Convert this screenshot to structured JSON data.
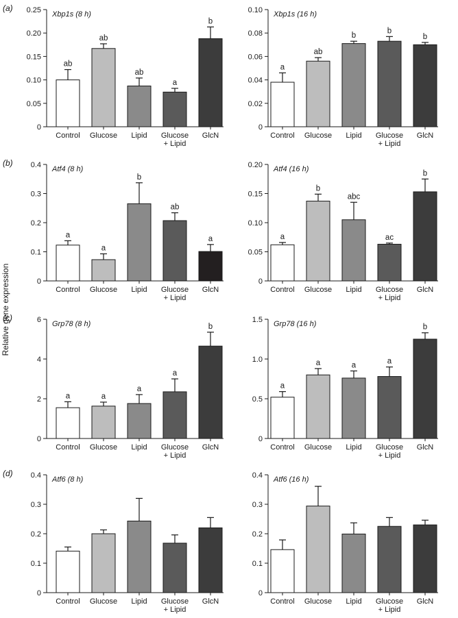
{
  "ylabel": "Relative gene expression",
  "colors": {
    "Control": "#ffffff",
    "Glucose": "#bdbdbd",
    "Lipid": "#8a8a8a",
    "Glucose + Lipid": "#5a5a5a",
    "GlcN": "#3c3c3c",
    "GlcN_atf4_8h": "#231f20",
    "axis": "#1a1a1a"
  },
  "panels": [
    {
      "label": "(a)",
      "left_gene": "Xbp1s",
      "right_gene": "Xbp1s"
    },
    {
      "label": "(b)",
      "left_gene": "Atf4",
      "right_gene": "Atf4"
    },
    {
      "label": "(c)",
      "left_gene": "Grp78",
      "right_gene": "Grp78"
    },
    {
      "label": "(d)",
      "left_gene": "Atf6",
      "right_gene": "Atf6"
    }
  ],
  "chart_data": [
    {
      "type": "bar",
      "panel": "(a)",
      "gene": "Xbp1s",
      "time": "(8 h)",
      "categories": [
        "Control",
        "Glucose",
        "Lipid",
        "Glucose + Lipid",
        "GlcN"
      ],
      "values": [
        0.1,
        0.167,
        0.087,
        0.074,
        0.188
      ],
      "errors": [
        0.022,
        0.01,
        0.017,
        0.008,
        0.025
      ],
      "significance": [
        "ab",
        "ab",
        "ab",
        "a",
        "b"
      ],
      "ylim": [
        0,
        0.25
      ],
      "yticks": [
        "0",
        "0.05",
        "0.10",
        "0.15",
        "0.20",
        "0.25"
      ]
    },
    {
      "type": "bar",
      "panel": "(a)",
      "gene": "Xbp1s",
      "time": "(16 h)",
      "categories": [
        "Control",
        "Glucose",
        "Lipid",
        "Glucose + Lipid",
        "GlcN"
      ],
      "values": [
        0.038,
        0.056,
        0.071,
        0.073,
        0.07
      ],
      "errors": [
        0.008,
        0.003,
        0.002,
        0.004,
        0.002
      ],
      "significance": [
        "a",
        "ab",
        "b",
        "b",
        "b"
      ],
      "ylim": [
        0,
        0.1
      ],
      "yticks": [
        "0",
        "0.02",
        "0.04",
        "0.06",
        "0.08",
        "0.10"
      ]
    },
    {
      "type": "bar",
      "panel": "(b)",
      "gene": "Atf4",
      "time": "(8 h)",
      "categories": [
        "Control",
        "Glucose",
        "Lipid",
        "Glucose + Lipid",
        "GlcN"
      ],
      "values": [
        0.123,
        0.073,
        0.265,
        0.207,
        0.101
      ],
      "errors": [
        0.015,
        0.02,
        0.072,
        0.027,
        0.024
      ],
      "significance": [
        "a",
        "a",
        "b",
        "ab",
        "a"
      ],
      "ylim": [
        0,
        0.4
      ],
      "yticks": [
        "0",
        "0.1",
        "0.2",
        "0.3",
        "0.4"
      ]
    },
    {
      "type": "bar",
      "panel": "(b)",
      "gene": "Atf4",
      "time": "(16 h)",
      "categories": [
        "Control",
        "Glucose",
        "Lipid",
        "Glucose + Lipid",
        "GlcN"
      ],
      "values": [
        0.062,
        0.137,
        0.105,
        0.063,
        0.153
      ],
      "errors": [
        0.004,
        0.012,
        0.03,
        0.002,
        0.022
      ],
      "significance": [
        "a",
        "b",
        "abc",
        "ac",
        "b"
      ],
      "ylim": [
        0,
        0.2
      ],
      "yticks": [
        "0",
        "0.05",
        "0.10",
        "0.15",
        "0.20"
      ]
    },
    {
      "type": "bar",
      "panel": "(c)",
      "gene": "Grp78",
      "time": "(8 h)",
      "categories": [
        "Control",
        "Glucose",
        "Lipid",
        "Glucose + Lipid",
        "GlcN"
      ],
      "values": [
        1.55,
        1.63,
        1.76,
        2.35,
        4.65
      ],
      "errors": [
        0.3,
        0.2,
        0.45,
        0.65,
        0.7
      ],
      "significance": [
        "a",
        "a",
        "a",
        "a",
        "b"
      ],
      "ylim": [
        0,
        6
      ],
      "yticks": [
        "0",
        "2",
        "4",
        "6"
      ]
    },
    {
      "type": "bar",
      "panel": "(c)",
      "gene": "Grp78",
      "time": "(16 h)",
      "categories": [
        "Control",
        "Glucose",
        "Lipid",
        "Glucose + Lipid",
        "GlcN"
      ],
      "values": [
        0.52,
        0.8,
        0.76,
        0.78,
        1.25
      ],
      "errors": [
        0.07,
        0.08,
        0.09,
        0.12,
        0.08
      ],
      "significance": [
        "a",
        "a",
        "a",
        "a",
        "b"
      ],
      "ylim": [
        0,
        1.5
      ],
      "yticks": [
        "0",
        "0.5",
        "1.0",
        "1.5"
      ]
    },
    {
      "type": "bar",
      "panel": "(d)",
      "gene": "Atf6",
      "time": "(8 h)",
      "categories": [
        "Control",
        "Glucose",
        "Lipid",
        "Glucose + Lipid",
        "GlcN"
      ],
      "values": [
        0.141,
        0.2,
        0.243,
        0.168,
        0.22
      ],
      "errors": [
        0.014,
        0.013,
        0.077,
        0.028,
        0.035
      ],
      "significance": [
        "",
        "",
        "",
        "",
        ""
      ],
      "ylim": [
        0,
        0.4
      ],
      "yticks": [
        "0",
        "0.1",
        "0.2",
        "0.3",
        "0.4"
      ]
    },
    {
      "type": "bar",
      "panel": "(d)",
      "gene": "Atf6",
      "time": "(16 h)",
      "categories": [
        "Control",
        "Glucose",
        "Lipid",
        "Glucose + Lipid",
        "GlcN"
      ],
      "values": [
        0.146,
        0.294,
        0.199,
        0.225,
        0.23
      ],
      "errors": [
        0.033,
        0.067,
        0.038,
        0.03,
        0.016
      ],
      "significance": [
        "",
        "",
        "",
        "",
        ""
      ],
      "ylim": [
        0,
        0.4
      ],
      "yticks": [
        "0",
        "0.1",
        "0.2",
        "0.3",
        "0.4"
      ]
    }
  ]
}
